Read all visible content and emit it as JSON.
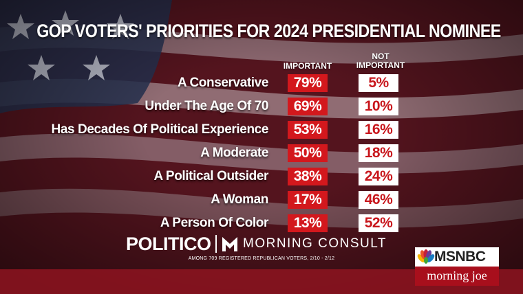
{
  "chart_data": {
    "type": "table",
    "title": "GOP VOTERS' PRIORITIES FOR 2024 PRESIDENTIAL NOMINEE",
    "columns": [
      "IMPORTANT",
      "NOT IMPORTANT"
    ],
    "categories": [
      "A Conservative",
      "Under The Age Of 70",
      "Has Decades Of Political Experience",
      "A Moderate",
      "A Political Outsider",
      "A Woman",
      "A Person Of Color"
    ],
    "series": [
      {
        "name": "IMPORTANT",
        "values": [
          79,
          69,
          53,
          50,
          38,
          17,
          13
        ]
      },
      {
        "name": "NOT IMPORTANT",
        "values": [
          5,
          10,
          16,
          18,
          24,
          46,
          52
        ]
      }
    ],
    "labels": {
      "important": [
        "79%",
        "69%",
        "53%",
        "50%",
        "38%",
        "17%",
        "13%"
      ],
      "not_important": [
        "5%",
        "10%",
        "16%",
        "18%",
        "24%",
        "46%",
        "52%"
      ]
    },
    "colors": {
      "important_box": "#d3181d",
      "not_important_box": "#ffffff",
      "not_important_text": "#c8161c"
    }
  },
  "headers": {
    "important": "IMPORTANT",
    "not_line1": "NOT",
    "not_line2": "IMPORTANT"
  },
  "source": {
    "politico": "POLITICO",
    "morning_consult": "MORNING CONSULT",
    "footnote": "AMONG 709 REGISTERED REPUBLICAN VOTERS, 2/10 - 2/12"
  },
  "branding": {
    "network": "MSNBC",
    "show": "morning joe"
  }
}
